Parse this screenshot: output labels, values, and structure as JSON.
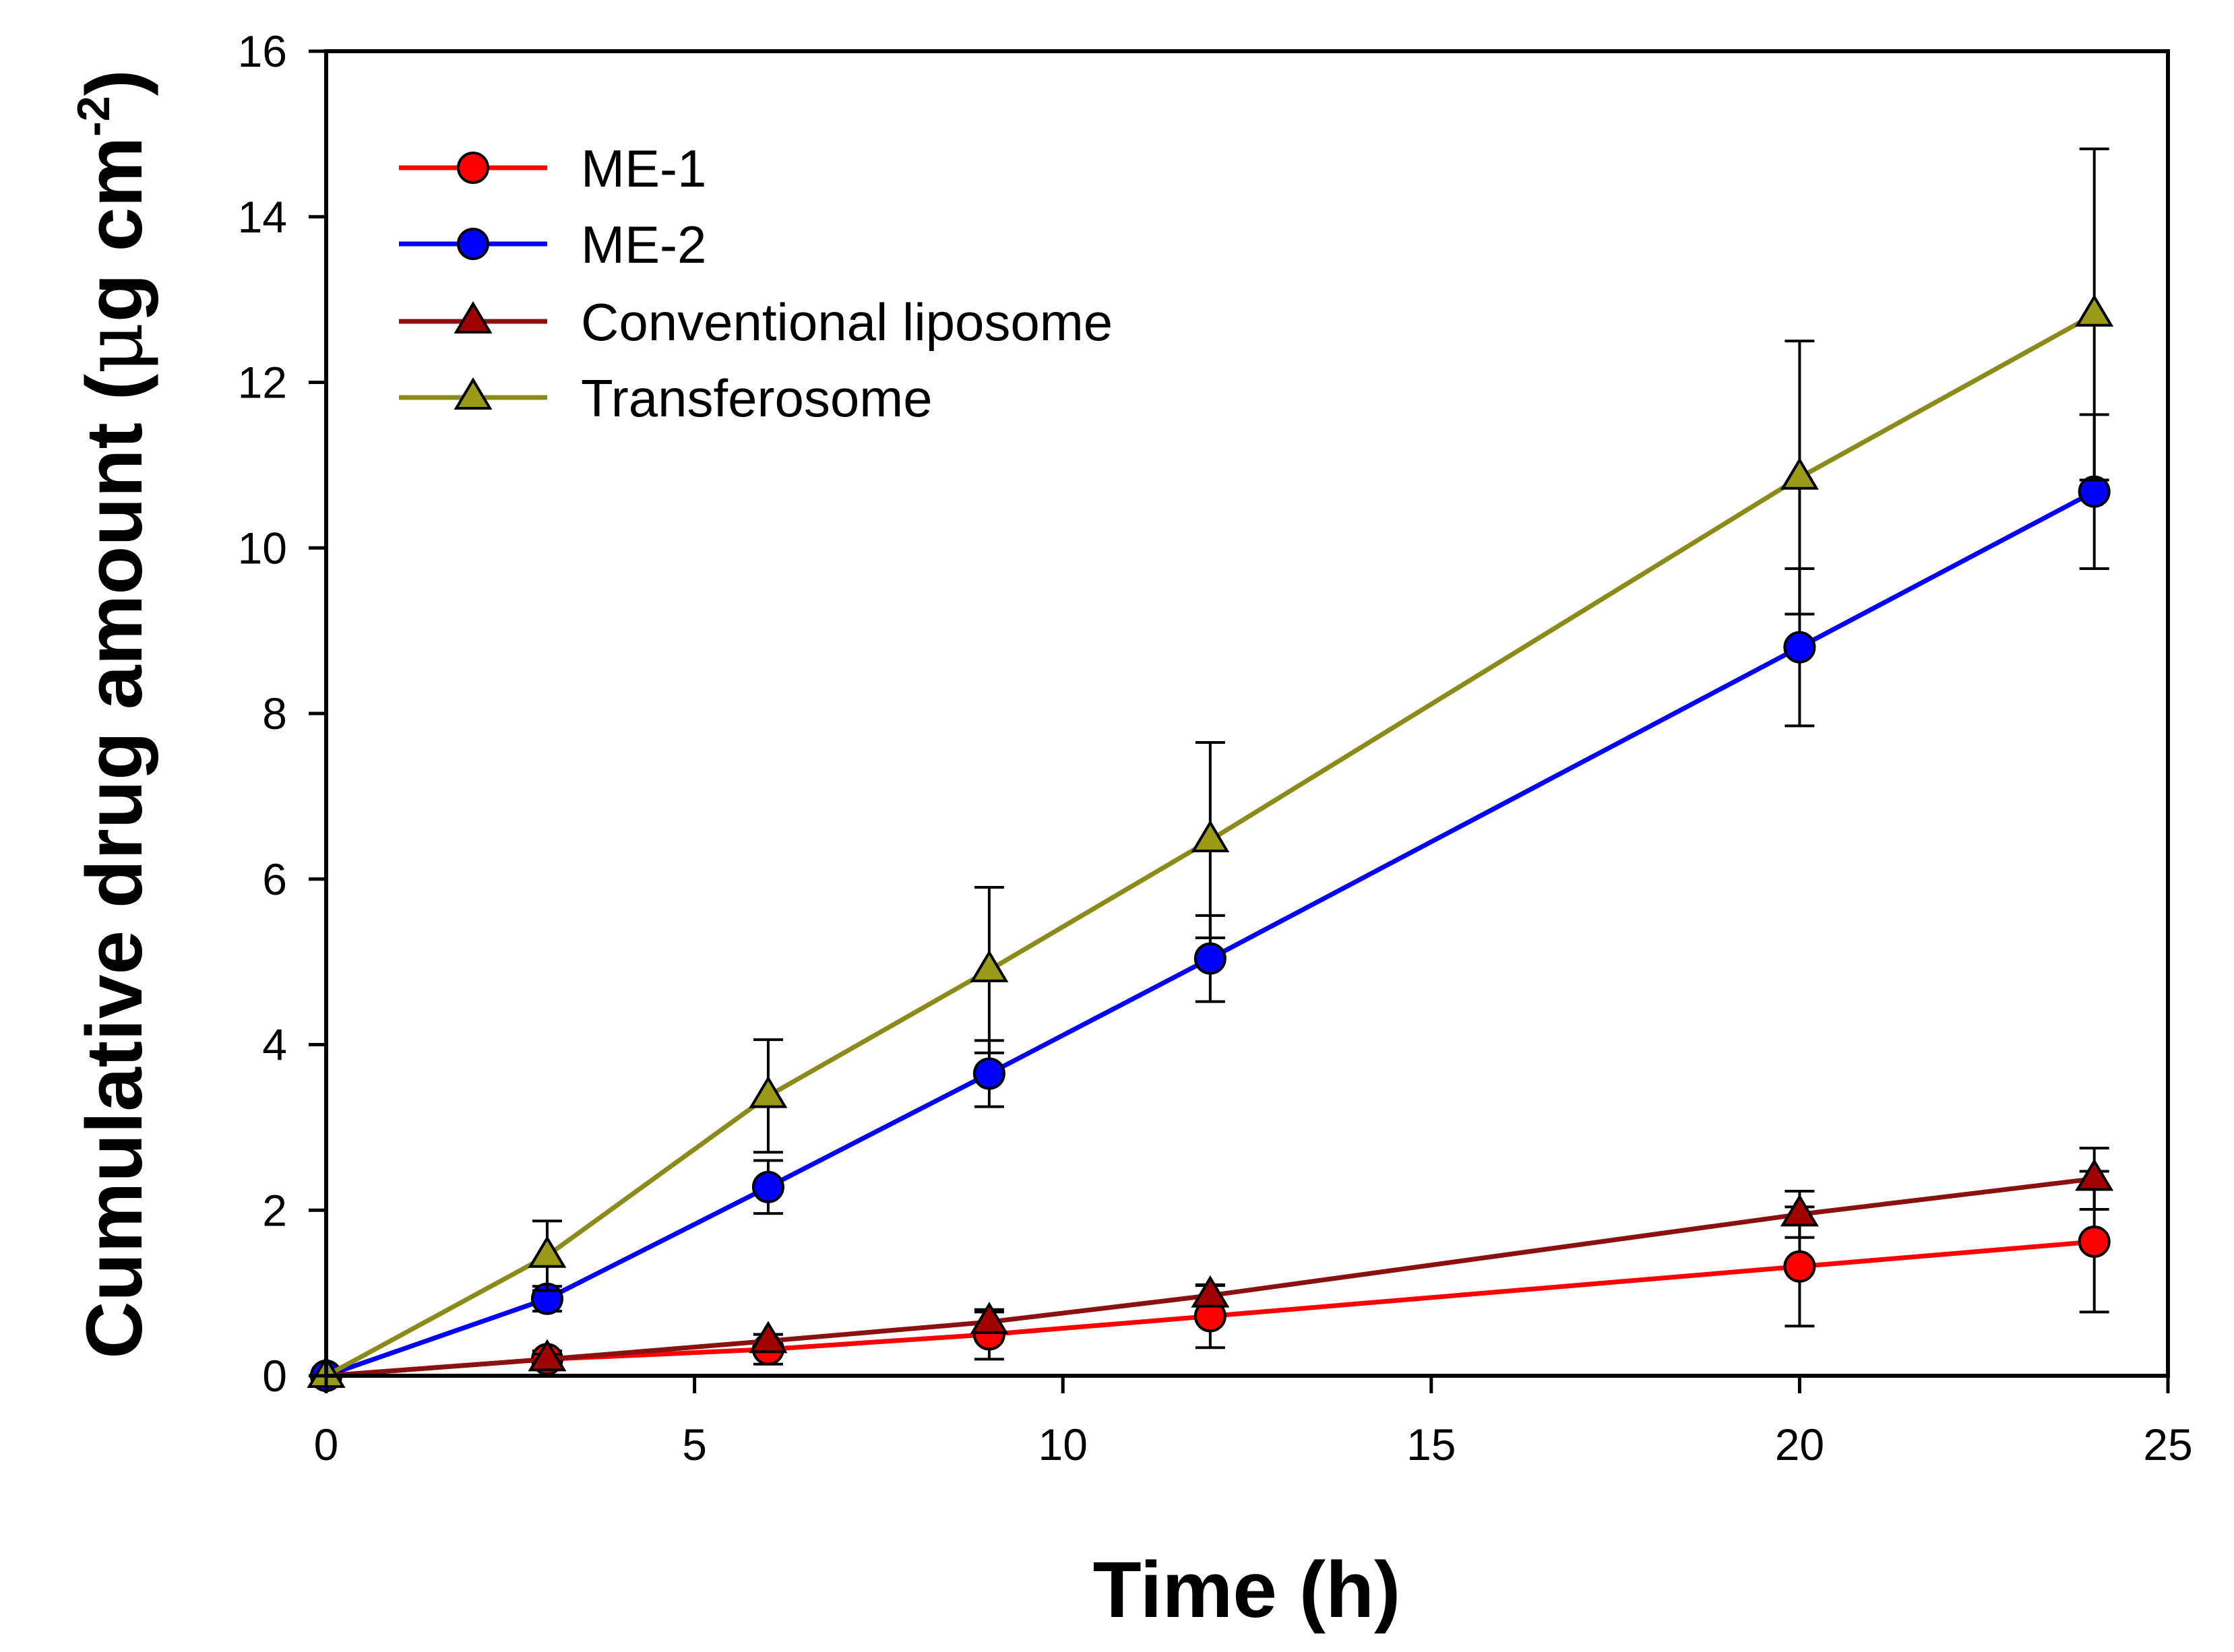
{
  "chart_data": {
    "type": "line",
    "title": "",
    "xlabel": "Time (h)",
    "ylabel": {
      "main": "Cumulative drug amount (",
      "mu": "μ",
      "unit": "g cm",
      "exponent": "-2",
      "close": ")"
    },
    "xlim": [
      0,
      25
    ],
    "ylim": [
      0,
      16
    ],
    "xticks": [
      0,
      5,
      10,
      15,
      20,
      25
    ],
    "yticks": [
      0,
      2,
      4,
      6,
      8,
      10,
      12,
      14,
      16
    ],
    "x": [
      0,
      3,
      6,
      9,
      12,
      20,
      24
    ],
    "legend_position": "top-left",
    "grid": false,
    "series": [
      {
        "name": "ME-1",
        "marker": "circle",
        "line_color": "#ff0000",
        "marker_color": "#ff0000",
        "values": [
          0,
          0.2,
          0.32,
          0.5,
          0.72,
          1.32,
          1.62
        ],
        "errors": [
          0,
          0.1,
          0.18,
          0.3,
          0.38,
          0.72,
          0.85
        ]
      },
      {
        "name": "ME-2",
        "marker": "circle",
        "line_color": "#0000ff",
        "marker_color": "#0000ff",
        "values": [
          0,
          0.93,
          2.28,
          3.65,
          5.04,
          8.8,
          10.68
        ],
        "errors": [
          0,
          0.15,
          0.32,
          0.4,
          0.52,
          0.95,
          0.93
        ]
      },
      {
        "name": "Conventional liposome",
        "marker": "triangle",
        "line_color": "#8b1010",
        "marker_color": "#a00000",
        "values": [
          0,
          0.2,
          0.42,
          0.65,
          0.97,
          1.95,
          2.38
        ],
        "errors": [
          0,
          0.06,
          0.08,
          0.12,
          0.12,
          0.28,
          0.37
        ]
      },
      {
        "name": "Transferosome",
        "marker": "triangle",
        "line_color": "#8b8b1a",
        "marker_color": "#9a9a18",
        "values": [
          0,
          1.45,
          3.38,
          4.9,
          6.47,
          10.85,
          12.82
        ],
        "errors": [
          0,
          0.42,
          0.68,
          1.0,
          1.18,
          1.65,
          2.0
        ]
      }
    ]
  }
}
